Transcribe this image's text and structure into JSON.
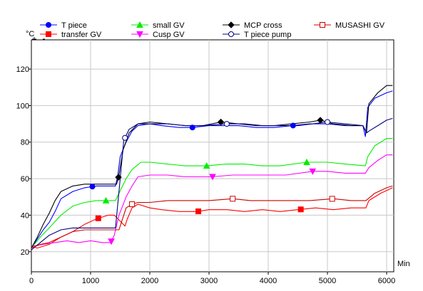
{
  "chart_data": {
    "type": "line",
    "title": "",
    "xlabel": "Min",
    "ylabel": "°C",
    "xlim": [
      0,
      6120
    ],
    "ylim": [
      9,
      136
    ],
    "xticks": [
      0,
      1000,
      2000,
      3000,
      4000,
      5000,
      6000
    ],
    "yticks": [
      20,
      40,
      60,
      80,
      100,
      120
    ],
    "grid": true,
    "legend": "top",
    "series": [
      {
        "name": "T piece",
        "color": "#0000ff",
        "marker": "filled-circle",
        "x": [
          0,
          100,
          200,
          300,
          400,
          500,
          700,
          900,
          1100,
          1300,
          1420,
          1460,
          1500,
          1600,
          1700,
          1800,
          2000,
          2200,
          2500,
          2720,
          3000,
          3200,
          3500,
          3800,
          4100,
          4400,
          4700,
          5000,
          5300,
          5600,
          5640,
          5680,
          5800,
          6000,
          6100
        ],
        "y": [
          22,
          27,
          32,
          36,
          42,
          49,
          53,
          55,
          56,
          56,
          56,
          62,
          72,
          80,
          86,
          89,
          90,
          89,
          88,
          88,
          89,
          89,
          89,
          88,
          88,
          89,
          90,
          90,
          89,
          89,
          83,
          99,
          104,
          107,
          108
        ],
        "markers_x": [
          1030,
          2720,
          4420
        ]
      },
      {
        "name": "transfer GV",
        "color": "#ff0000",
        "marker": "filled-square",
        "x": [
          0,
          100,
          300,
          500,
          700,
          900,
          1100,
          1300,
          1400,
          1580,
          1620,
          1700,
          1800,
          2000,
          2200,
          2500,
          2800,
          3000,
          3300,
          3600,
          3900,
          4200,
          4500,
          4800,
          5100,
          5400,
          5650,
          5700,
          5900,
          6100
        ],
        "y": [
          23,
          22,
          24,
          28,
          31,
          35,
          38,
          40,
          40,
          34,
          38,
          44,
          46,
          44,
          43,
          42,
          42,
          43,
          43,
          42,
          43,
          42,
          43,
          44,
          43,
          44,
          44,
          48,
          52,
          55
        ],
        "markers_x": [
          1130,
          2820,
          4550
        ]
      },
      {
        "name": "small GV",
        "color": "#00ee00",
        "marker": "filled-triangle",
        "x": [
          0,
          150,
          300,
          500,
          700,
          900,
          1100,
          1300,
          1420,
          1480,
          1600,
          1700,
          1850,
          2000,
          2300,
          2600,
          2950,
          3300,
          3600,
          3900,
          4200,
          4650,
          5000,
          5300,
          5640,
          5680,
          5800,
          6000,
          6100
        ],
        "y": [
          22,
          28,
          33,
          40,
          45,
          47,
          48,
          48,
          48,
          52,
          60,
          65,
          69,
          69,
          68,
          67,
          67,
          68,
          68,
          67,
          67,
          69,
          69,
          68,
          67,
          72,
          78,
          82,
          82
        ],
        "markers_x": [
          1260,
          2960,
          4650
        ]
      },
      {
        "name": "Cusp GV",
        "color": "#ff00ff",
        "marker": "filled-inverted-triangle",
        "x": [
          0,
          200,
          400,
          600,
          800,
          1000,
          1200,
          1340,
          1400,
          1480,
          1600,
          1700,
          1800,
          2000,
          2300,
          2600,
          3050,
          3400,
          3700,
          4000,
          4300,
          4750,
          5000,
          5300,
          5640,
          5700,
          5850,
          6000,
          6100
        ],
        "y": [
          23,
          24,
          25,
          26,
          25,
          26,
          25,
          25,
          29,
          40,
          50,
          56,
          61,
          62,
          62,
          61,
          61,
          62,
          62,
          62,
          62,
          64,
          64,
          63,
          63,
          66,
          70,
          73,
          73
        ],
        "markers_x": [
          1350,
          3060,
          4750
        ]
      },
      {
        "name": "MCP cross",
        "color": "#000000",
        "marker": "filled-diamond",
        "x": [
          0,
          100,
          200,
          300,
          400,
          500,
          700,
          900,
          1100,
          1300,
          1440,
          1480,
          1550,
          1650,
          1800,
          2000,
          2300,
          2600,
          2900,
          3200,
          3500,
          3800,
          4100,
          4400,
          4700,
          4880,
          5100,
          5400,
          5600,
          5660,
          5700,
          5850,
          6000,
          6100
        ],
        "y": [
          22,
          28,
          35,
          41,
          48,
          53,
          56,
          57,
          57,
          57,
          57,
          62,
          76,
          85,
          90,
          91,
          90,
          89,
          89,
          91,
          90,
          89,
          89,
          90,
          91,
          92,
          90,
          89,
          89,
          85,
          101,
          107,
          111,
          111
        ],
        "markers_x": [
          1470,
          3200,
          4880
        ]
      },
      {
        "name": "T piece pump",
        "color": "#000080",
        "marker": "open-circle",
        "x": [
          0,
          150,
          300,
          500,
          700,
          900,
          1100,
          1300,
          1420,
          1500,
          1560,
          1650,
          1800,
          2000,
          2300,
          2600,
          2900,
          3300,
          3600,
          3900,
          4200,
          4500,
          4750,
          5000,
          5300,
          5600,
          5660,
          5700,
          5850,
          6000,
          6100
        ],
        "y": [
          21,
          25,
          29,
          32,
          33,
          33,
          33,
          33,
          33,
          60,
          81,
          87,
          90,
          90,
          90,
          89,
          89,
          90,
          90,
          89,
          89,
          89,
          90,
          91,
          90,
          89,
          85,
          86,
          89,
          92,
          93
        ],
        "markers_x": [
          1580,
          3300,
          5000
        ]
      },
      {
        "name": "MUSASHI GV",
        "color": "#cc0000",
        "marker": "open-square",
        "x": [
          0,
          150,
          300,
          500,
          700,
          900,
          1100,
          1300,
          1480,
          1540,
          1600,
          1700,
          1800,
          1900,
          2000,
          2300,
          2700,
          3000,
          3400,
          3700,
          4000,
          4300,
          4700,
          5100,
          5400,
          5600,
          5650,
          5800,
          6000,
          6100
        ],
        "y": [
          22,
          24,
          25,
          28,
          31,
          32,
          32,
          32,
          32,
          38,
          44,
          46,
          47,
          47,
          47,
          48,
          48,
          48,
          49,
          48,
          48,
          48,
          48,
          49,
          48,
          48,
          48,
          52,
          55,
          56
        ],
        "markers_x": [
          1700,
          3400,
          5080
        ]
      }
    ]
  }
}
